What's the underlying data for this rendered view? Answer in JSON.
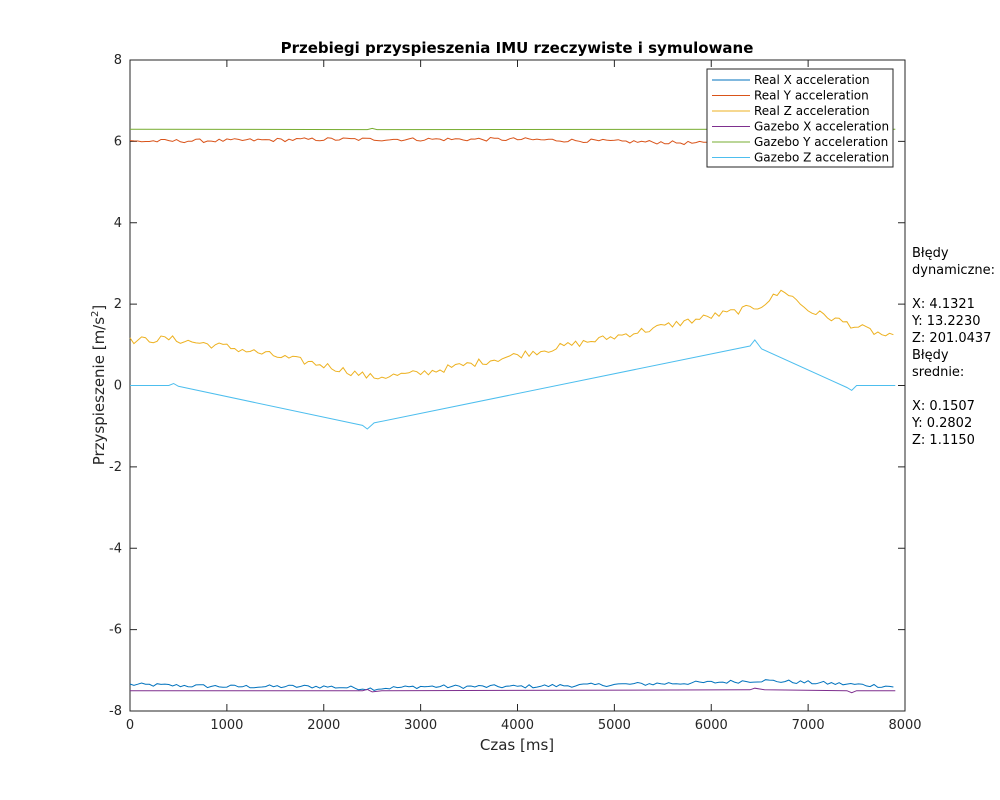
{
  "chart_data": {
    "type": "line",
    "title": "Przebiegi przyspieszenia IMU rzeczywiste i symulowane",
    "xlabel": "Czas [ms]",
    "ylabel": "Przyspieszenie [m/s",
    "ylabel_sup": "2",
    "ylabel_end": "]",
    "xlim": [
      0,
      8000
    ],
    "ylim": [
      -8,
      8
    ],
    "xticks": [
      "0",
      "1000",
      "2000",
      "3000",
      "4000",
      "5000",
      "6000",
      "7000",
      "8000"
    ],
    "yticks": [
      "-8",
      "-6",
      "-4",
      "-2",
      "0",
      "2",
      "4",
      "6",
      "8"
    ],
    "grid": false,
    "legend_position": "top-right",
    "series": [
      {
        "name": "Real X acceleration",
        "color": "#0072BD",
        "style": "noisy",
        "x": [
          0,
          1000,
          2000,
          2500,
          3000,
          4000,
          5000,
          6000,
          6500,
          7000,
          7500,
          7900
        ],
        "y": [
          -7.35,
          -7.4,
          -7.4,
          -7.45,
          -7.4,
          -7.4,
          -7.35,
          -7.3,
          -7.25,
          -7.3,
          -7.35,
          -7.4
        ]
      },
      {
        "name": "Real Y acceleration",
        "color": "#D95319",
        "style": "noisy",
        "x": [
          0,
          1000,
          2000,
          3000,
          4000,
          5000,
          6000,
          6500,
          7000,
          7500,
          7900
        ],
        "y": [
          6.0,
          6.02,
          6.05,
          6.05,
          6.05,
          6.0,
          5.95,
          5.98,
          6.0,
          6.02,
          6.02
        ]
      },
      {
        "name": "Real Z acceleration",
        "color": "#EDB120",
        "style": "noisy",
        "x": [
          0,
          400,
          1000,
          2000,
          2500,
          3000,
          4000,
          5000,
          6000,
          6500,
          6750,
          7000,
          7500,
          7900
        ],
        "y": [
          1.1,
          1.15,
          0.95,
          0.5,
          0.2,
          0.3,
          0.75,
          1.2,
          1.7,
          1.95,
          2.35,
          1.85,
          1.45,
          1.15
        ]
      },
      {
        "name": "Gazebo X acceleration",
        "color": "#7E2F8E",
        "style": "smooth",
        "x": [
          0,
          2400,
          2450,
          2500,
          2600,
          6400,
          6450,
          6550,
          7400,
          7450,
          7500,
          7900
        ],
        "y": [
          -7.5,
          -7.5,
          -7.47,
          -7.53,
          -7.5,
          -7.48,
          -7.44,
          -7.48,
          -7.5,
          -7.55,
          -7.5,
          -7.5
        ]
      },
      {
        "name": "Gazebo Y acceleration",
        "color": "#77AC30",
        "style": "smooth",
        "x": [
          0,
          2450,
          2500,
          2550,
          7900
        ],
        "y": [
          6.3,
          6.29,
          6.32,
          6.29,
          6.3
        ]
      },
      {
        "name": "Gazebo Z acceleration",
        "color": "#4DBEEE",
        "style": "smooth",
        "x": [
          0,
          400,
          450,
          500,
          2400,
          2450,
          2520,
          6400,
          6450,
          6520,
          7400,
          7450,
          7500,
          7900
        ],
        "y": [
          0,
          0,
          0.05,
          -0.02,
          -0.98,
          -1.07,
          -0.92,
          0.97,
          1.12,
          0.9,
          -0.05,
          -0.12,
          0,
          0
        ]
      }
    ]
  },
  "annotation": {
    "lines": [
      "Błędy",
      "dynamiczne:",
      "",
      "X: 4.1321",
      "Y: 13.2230",
      "Z: 201.0437",
      "Błędy",
      "srednie:",
      "",
      "X: 0.1507",
      "Y: 0.2802",
      "Z: 1.1150"
    ]
  }
}
